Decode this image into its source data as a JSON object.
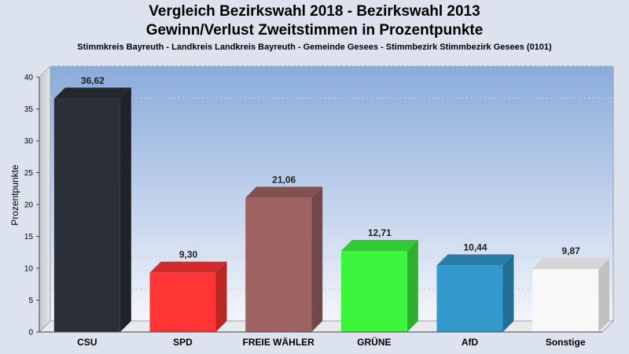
{
  "title": "Vergleich Bezirkswahl 2018 - Bezirkswahl 2013",
  "subtitle": "Gewinn/Verlust Zweitstimmen in Prozentpunkte",
  "subsubtitle": "Stimmkreis Bayreuth - Landkreis Landkreis Bayreuth - Gemeinde Gesees - Stimmbezirk Stimmbezirk Gesees (0101)",
  "chart_data": {
    "type": "bar",
    "title": "Vergleich Bezirkswahl 2018 - Bezirkswahl 2013",
    "subtitle": "Gewinn/Verlust Zweitstimmen in Prozentpunkte",
    "xlabel": "",
    "ylabel": "Prozentpunkte",
    "ylim": [
      0,
      40
    ],
    "yticks": [
      0,
      5,
      10,
      15,
      20,
      25,
      30,
      35,
      40
    ],
    "grid": true,
    "categories": [
      "CSU",
      "SPD",
      "FREIE WÄHLER",
      "GRÜNE",
      "AfD",
      "Sonstige"
    ],
    "values": [
      36.62,
      9.3,
      21.06,
      12.71,
      10.44,
      9.87
    ],
    "value_labels": [
      "36,62",
      "9,30",
      "21,06",
      "12,71",
      "10,44",
      "9,87"
    ],
    "colors": [
      "#2b2f38",
      "#ff3535",
      "#9e6464",
      "#3ef53e",
      "#3399cc",
      "#f8f8f8"
    ]
  }
}
